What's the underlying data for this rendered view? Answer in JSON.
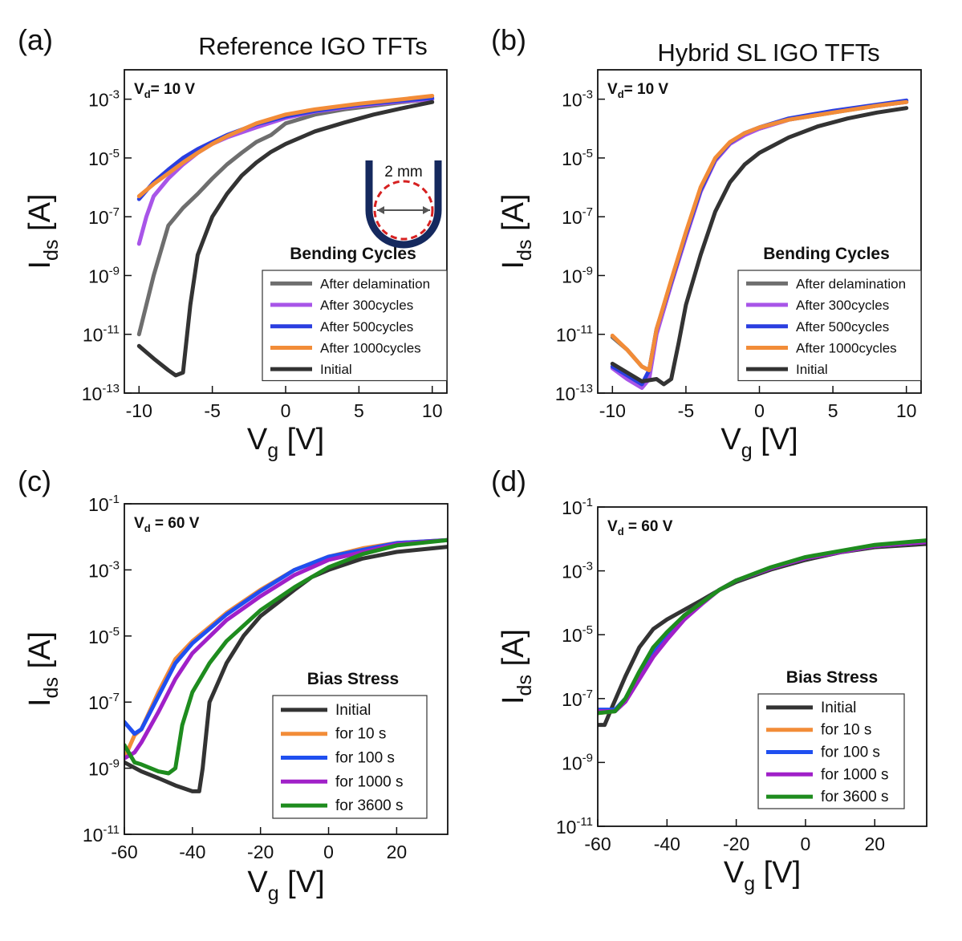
{
  "chart_data": [
    {
      "type": "line",
      "panel_label": "(a)",
      "title": "Reference IGO TFTs",
      "xlabel": [
        "V",
        "g",
        " [V]"
      ],
      "ylabel": [
        "I",
        "ds",
        " [A]"
      ],
      "annotation": [
        "V",
        "d",
        "= 10 V"
      ],
      "inset_label": "2 mm",
      "legend_title": "Bending Cycles",
      "legend": "lower right",
      "log_y": true,
      "xlim": [
        -11,
        11
      ],
      "xticks": [
        -10,
        -5,
        0,
        5,
        10
      ],
      "ylim": [
        1e-13,
        0.01
      ],
      "yticks": [
        {
          "value": 1e-13,
          "label": "10^-13"
        },
        {
          "value": 1e-11,
          "label": "10^-11"
        },
        {
          "value": 1e-09,
          "label": "10^-9"
        },
        {
          "value": 1e-07,
          "label": "10^-7"
        },
        {
          "value": 1e-05,
          "label": "10^-5"
        },
        {
          "value": 0.001,
          "label": "10^-3"
        }
      ],
      "series": [
        {
          "name": "After delamination",
          "color": "#6e6e6e",
          "x": [
            -10,
            -9.5,
            -9,
            -8,
            -7,
            -6,
            -5,
            -4,
            -3,
            -2,
            -1,
            0,
            2,
            4,
            6,
            8,
            10
          ],
          "values": [
            1e-11,
            1e-10,
            1e-09,
            5e-08,
            2e-07,
            6e-07,
            2e-06,
            6e-06,
            1.5e-05,
            3.5e-05,
            6e-05,
            0.00015,
            0.0003,
            0.00045,
            0.0006,
            0.0008,
            0.001
          ]
        },
        {
          "name": "After 300cycles",
          "color": "#a855e8",
          "x": [
            -10,
            -9.5,
            -9,
            -8,
            -7,
            -6,
            -5,
            -4,
            -2,
            0,
            2,
            5,
            8,
            10
          ],
          "values": [
            1.2e-08,
            1e-07,
            5e-07,
            2e-06,
            6e-06,
            1.5e-05,
            3e-05,
            5e-05,
            0.00011,
            0.00023,
            0.00038,
            0.0006,
            0.00085,
            0.001
          ]
        },
        {
          "name": "After 500cycles",
          "color": "#2a3ee0",
          "x": [
            -10,
            -9,
            -8,
            -7,
            -6,
            -5,
            -4,
            -2,
            0,
            2,
            5,
            8,
            10
          ],
          "values": [
            4e-07,
            1.5e-06,
            4e-06,
            1e-05,
            2e-05,
            3.5e-05,
            6e-05,
            0.00014,
            0.00026,
            0.0004,
            0.00065,
            0.0009,
            0.0011
          ]
        },
        {
          "name": "After 1000cycles",
          "color": "#f28c38",
          "x": [
            -10,
            -9,
            -8,
            -7,
            -6,
            -5,
            -4,
            -2,
            0,
            2,
            5,
            8,
            10
          ],
          "values": [
            5e-07,
            1.3e-06,
            3e-06,
            7e-06,
            1.5e-05,
            3e-05,
            5.5e-05,
            0.00015,
            0.0003,
            0.00045,
            0.0007,
            0.001,
            0.0013
          ]
        },
        {
          "name": "Initial",
          "color": "#333333",
          "x": [
            -10,
            -9,
            -8,
            -7.5,
            -7,
            -6.5,
            -6,
            -5,
            -4,
            -3,
            -2,
            -1,
            0,
            2,
            4,
            6,
            8,
            10
          ],
          "values": [
            4e-12,
            1.5e-12,
            6e-13,
            4e-13,
            5e-13,
            1e-10,
            5e-09,
            1e-07,
            6e-07,
            2.5e-06,
            7e-06,
            1.6e-05,
            3e-05,
            8e-05,
            0.00016,
            0.0003,
            0.0005,
            0.0008
          ]
        }
      ]
    },
    {
      "type": "line",
      "panel_label": "(b)",
      "title": "Hybrid SL IGO TFTs",
      "xlabel": [
        "V",
        "g",
        " [V]"
      ],
      "ylabel": [
        "I",
        "ds",
        " [A]"
      ],
      "annotation": [
        "V",
        "d",
        "= 10 V"
      ],
      "legend_title": "Bending Cycles",
      "legend": "lower right",
      "log_y": true,
      "xlim": [
        -11,
        11
      ],
      "xticks": [
        -10,
        -5,
        0,
        5,
        10
      ],
      "ylim": [
        1e-13,
        0.01
      ],
      "yticks": [
        {
          "value": 1e-13,
          "label": "10^-13"
        },
        {
          "value": 1e-11,
          "label": "10^-11"
        },
        {
          "value": 1e-09,
          "label": "10^-9"
        },
        {
          "value": 1e-07,
          "label": "10^-7"
        },
        {
          "value": 1e-05,
          "label": "10^-5"
        },
        {
          "value": 0.001,
          "label": "10^-3"
        }
      ],
      "series": [
        {
          "name": "After delamination",
          "color": "#6e6e6e",
          "x": [
            -10,
            -9,
            -8,
            -7.5,
            -7,
            -6,
            -5,
            -4,
            -3,
            -2,
            -1,
            0,
            2,
            5,
            8,
            10
          ],
          "values": [
            8e-12,
            3e-12,
            8e-13,
            6e-13,
            1.4e-11,
            6e-10,
            2.5e-08,
            9e-07,
            9e-06,
            3.2e-05,
            6.5e-05,
            0.0001,
            0.0002,
            0.00035,
            0.0006,
            0.0008
          ]
        },
        {
          "name": "After 300cycles",
          "color": "#a855e8",
          "x": [
            -10,
            -9,
            -8,
            -7.5,
            -7,
            -6,
            -5,
            -4,
            -3,
            -2,
            -1,
            0,
            2,
            4,
            6,
            8,
            10
          ],
          "values": [
            7e-13,
            3e-13,
            1.5e-13,
            3e-13,
            1e-11,
            5e-10,
            2e-08,
            7e-07,
            8e-06,
            3e-05,
            6e-05,
            0.0001,
            0.0002,
            0.0003,
            0.00045,
            0.0006,
            0.0008
          ]
        },
        {
          "name": "After 500cycles",
          "color": "#2a3ee0",
          "x": [
            -10,
            -9,
            -8,
            -7.5,
            -7,
            -6,
            -5,
            -4,
            -3,
            -2,
            -1,
            0,
            2,
            5,
            8,
            10
          ],
          "values": [
            8e-13,
            4e-13,
            2e-13,
            6e-13,
            1.5e-11,
            6e-10,
            2.5e-08,
            8e-07,
            9e-06,
            3.3e-05,
            7e-05,
            0.00011,
            0.00022,
            0.0004,
            0.00065,
            0.0009
          ]
        },
        {
          "name": "After 1000cycles",
          "color": "#f28c38",
          "x": [
            -10,
            -9,
            -8,
            -7.5,
            -7,
            -6,
            -5,
            -4,
            -3,
            -2,
            -1,
            0,
            2,
            5,
            8,
            10
          ],
          "values": [
            9e-12,
            3e-12,
            8e-13,
            6e-13,
            1.5e-11,
            7e-10,
            3e-08,
            1e-06,
            1e-05,
            3.5e-05,
            7e-05,
            0.00011,
            0.0002,
            0.00035,
            0.0006,
            0.0008
          ]
        },
        {
          "name": "Initial",
          "color": "#333333",
          "x": [
            -10,
            -9,
            -8,
            -7,
            -6.5,
            -6,
            -5.5,
            -5,
            -4,
            -3,
            -2,
            -1,
            0,
            2,
            4,
            6,
            8,
            10
          ],
          "values": [
            1e-12,
            5e-13,
            2.5e-13,
            3e-13,
            2e-13,
            3e-13,
            5e-12,
            1e-10,
            5e-09,
            1.5e-07,
            1.5e-06,
            6e-06,
            1.5e-05,
            5e-05,
            0.00012,
            0.00022,
            0.00035,
            0.0005
          ]
        }
      ]
    },
    {
      "type": "line",
      "panel_label": "(c)",
      "xlabel": [
        "V",
        "g",
        " [V]"
      ],
      "ylabel": [
        "I",
        "ds",
        " [A]"
      ],
      "annotation": [
        "V",
        "d",
        " = 60 V"
      ],
      "legend_title": "Bias Stress",
      "legend": "lower right",
      "log_y": true,
      "xlim": [
        -60,
        35
      ],
      "xticks": [
        -60,
        -40,
        -20,
        0,
        20
      ],
      "ylim": [
        1e-11,
        0.1
      ],
      "yticks": [
        {
          "value": 1e-11,
          "label": "10^-11"
        },
        {
          "value": 1e-09,
          "label": "10^-9"
        },
        {
          "value": 1e-07,
          "label": "10^-7"
        },
        {
          "value": 1e-05,
          "label": "10^-5"
        },
        {
          "value": 0.001,
          "label": "10^-3"
        },
        {
          "value": 0.1,
          "label": "10^-1"
        }
      ],
      "series": [
        {
          "name": "Initial",
          "color": "#333333",
          "x": [
            -60,
            -55,
            -50,
            -45,
            -40,
            -38,
            -37,
            -35,
            -32,
            -30,
            -25,
            -20,
            -15,
            -10,
            -5,
            0,
            10,
            20,
            35
          ],
          "values": [
            1.5e-09,
            8e-10,
            5e-10,
            3e-10,
            2e-10,
            2e-10,
            1e-09,
            1e-07,
            5e-07,
            1.5e-06,
            1e-05,
            4e-05,
            0.0001,
            0.00025,
            0.0006,
            0.001,
            0.0022,
            0.0035,
            0.005
          ]
        },
        {
          "name": "for 10 s",
          "color": "#f28c38",
          "x": [
            -60,
            -57,
            -55,
            -50,
            -45,
            -40,
            -30,
            -20,
            -10,
            0,
            10,
            20,
            35
          ],
          "values": [
            2e-09,
            1e-08,
            1.5e-08,
            2e-07,
            2e-06,
            7e-06,
            5e-05,
            0.00025,
            0.001,
            0.0025,
            0.0045,
            0.0065,
            0.008
          ]
        },
        {
          "name": "for 100 s",
          "color": "#1f4ff0",
          "x": [
            -60,
            -57,
            -55,
            -50,
            -45,
            -40,
            -30,
            -20,
            -10,
            0,
            20,
            35
          ],
          "values": [
            2.5e-08,
            1.1e-08,
            1.5e-08,
            1.5e-07,
            1.5e-06,
            6e-06,
            4.5e-05,
            0.00023,
            0.001,
            0.0025,
            0.0065,
            0.008
          ]
        },
        {
          "name": "for 1000 s",
          "color": "#a020c8",
          "x": [
            -60,
            -57,
            -55,
            -50,
            -45,
            -40,
            -30,
            -20,
            -10,
            0,
            20,
            35
          ],
          "values": [
            2e-09,
            3e-09,
            6e-09,
            5e-08,
            5e-07,
            3e-06,
            3e-05,
            0.00016,
            0.0007,
            0.002,
            0.006,
            0.008
          ]
        },
        {
          "name": "for 3600 s",
          "color": "#1e8c1e",
          "x": [
            -60,
            -57,
            -55,
            -50,
            -47,
            -45,
            -43,
            -40,
            -35,
            -30,
            -20,
            -10,
            0,
            10,
            20,
            35
          ],
          "values": [
            5e-09,
            1.5e-09,
            1.3e-09,
            8e-10,
            7e-10,
            1e-09,
            2e-08,
            2e-07,
            1.5e-06,
            7e-06,
            6e-05,
            0.0003,
            0.0012,
            0.003,
            0.0055,
            0.008
          ]
        }
      ]
    },
    {
      "type": "line",
      "panel_label": "(d)",
      "xlabel": [
        "V",
        "g",
        " [V]"
      ],
      "ylabel": [
        "I",
        "ds",
        " [A]"
      ],
      "annotation": [
        "V",
        "d",
        " = 60 V"
      ],
      "legend_title": "Bias Stress",
      "legend": "lower right",
      "log_y": true,
      "xlim": [
        -60,
        35
      ],
      "xticks": [
        -60,
        -40,
        -20,
        0,
        20
      ],
      "ylim": [
        1e-11,
        0.1
      ],
      "yticks": [
        {
          "value": 1e-11,
          "label": "10^-11"
        },
        {
          "value": 1e-09,
          "label": "10^-9"
        },
        {
          "value": 1e-07,
          "label": "10^-7"
        },
        {
          "value": 1e-05,
          "label": "10^-5"
        },
        {
          "value": 0.001,
          "label": "10^-3"
        },
        {
          "value": 0.1,
          "label": "10^-1"
        }
      ],
      "series": [
        {
          "name": "Initial",
          "color": "#333333",
          "x": [
            -60,
            -58,
            -56,
            -52,
            -48,
            -44,
            -40,
            -35,
            -30,
            -25,
            -20,
            -10,
            0,
            10,
            20,
            35
          ],
          "values": [
            1.5e-08,
            1.5e-08,
            5e-08,
            5e-07,
            4e-06,
            1.5e-05,
            3e-05,
            6e-05,
            0.00012,
            0.00025,
            0.00045,
            0.0011,
            0.0022,
            0.0038,
            0.0055,
            0.007
          ]
        },
        {
          "name": "for 10 s",
          "color": "#f28c38",
          "x": [
            -60,
            -55,
            -52,
            -48,
            -44,
            -40,
            -35,
            -30,
            -25,
            -20,
            -10,
            0,
            20,
            35
          ],
          "values": [
            3.5e-08,
            4e-08,
            1e-07,
            6e-07,
            3e-06,
            1e-05,
            4e-05,
            0.0001,
            0.00025,
            0.0005,
            0.0012,
            0.0025,
            0.006,
            0.008
          ]
        },
        {
          "name": "for 100 s",
          "color": "#1f4ff0",
          "x": [
            -60,
            -55,
            -52,
            -48,
            -44,
            -40,
            -35,
            -30,
            -25,
            -20,
            -10,
            0,
            20,
            35
          ],
          "values": [
            4.5e-08,
            4.5e-08,
            1e-07,
            6e-07,
            3e-06,
            1e-05,
            4e-05,
            0.0001,
            0.00025,
            0.0005,
            0.0012,
            0.0025,
            0.006,
            0.008
          ]
        },
        {
          "name": "for 1000 s",
          "color": "#a020c8",
          "x": [
            -60,
            -55,
            -52,
            -48,
            -44,
            -40,
            -35,
            -30,
            -25,
            -20,
            -10,
            0,
            20,
            35
          ],
          "values": [
            4e-08,
            4e-08,
            8e-08,
            4e-07,
            2e-06,
            7e-06,
            3e-05,
            9e-05,
            0.00025,
            0.0005,
            0.0012,
            0.0025,
            0.006,
            0.008
          ]
        },
        {
          "name": "for 3600 s",
          "color": "#1e8c1e",
          "x": [
            -60,
            -55,
            -52,
            -48,
            -44,
            -40,
            -35,
            -30,
            -25,
            -20,
            -10,
            0,
            20,
            35
          ],
          "values": [
            3.5e-08,
            4e-08,
            1e-07,
            7e-07,
            4e-06,
            1.2e-05,
            4e-05,
            0.0001,
            0.00025,
            0.0005,
            0.0013,
            0.0027,
            0.0065,
            0.009
          ]
        }
      ]
    }
  ]
}
